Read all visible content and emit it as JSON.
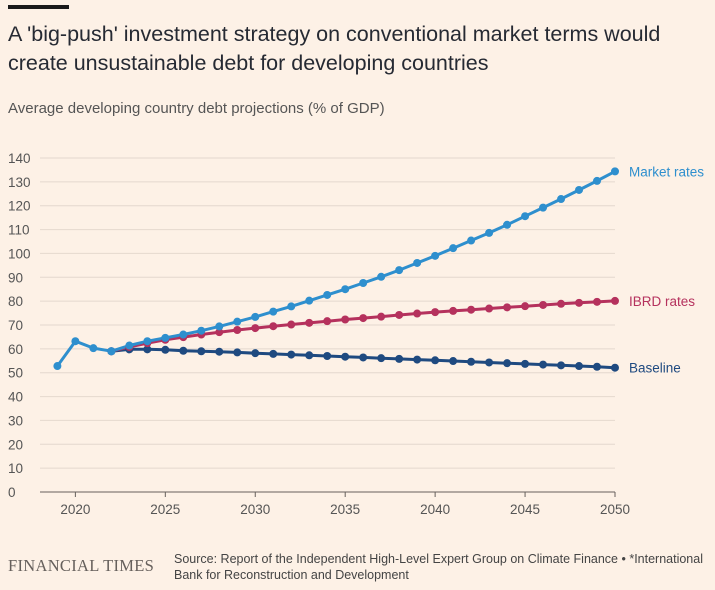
{
  "title": "A 'big-push' investment strategy on conventional market terms would create unsustainable debt for developing countries",
  "subtitle": "Average developing country debt projections (% of GDP)",
  "footer": {
    "logo": "FINANCIAL TIMES",
    "source": "Source: Report of the Independent High-Level Expert Group on Climate Finance • *International Bank for Reconstruction and Development"
  },
  "colors": {
    "background": "#fdf1e6",
    "grid": "#e4d8ce",
    "axis": "#66605c",
    "market": "#2e8fce",
    "ibrd": "#b5315d",
    "baseline": "#1f4a80"
  },
  "chart_data": {
    "type": "line",
    "title": "A 'big-push' investment strategy on conventional market terms would create unsustainable debt for developing countries",
    "subtitle": "Average developing country debt projections (% of GDP)",
    "xlabel": "",
    "ylabel": "",
    "xlim": [
      2018.2,
      2050
    ],
    "ylim": [
      0,
      140
    ],
    "xticks": [
      2020,
      2025,
      2030,
      2035,
      2040,
      2045,
      2050
    ],
    "yticks": [
      0,
      10,
      20,
      30,
      40,
      50,
      60,
      70,
      80,
      90,
      100,
      110,
      120,
      130,
      140
    ],
    "grid": true,
    "legend": "direct labels at line ends (right)",
    "history": {
      "x": [
        2019,
        2020,
        2021,
        2022
      ],
      "values": [
        52.8,
        63.2,
        60.3,
        59.0
      ]
    },
    "series": [
      {
        "name": "Market rates",
        "color": "#2e8fce",
        "x": [
          2022,
          2023,
          2024,
          2025,
          2026,
          2027,
          2028,
          2029,
          2030,
          2031,
          2032,
          2033,
          2034,
          2035,
          2036,
          2037,
          2038,
          2039,
          2040,
          2041,
          2042,
          2043,
          2044,
          2045,
          2046,
          2047,
          2048,
          2049,
          2050
        ],
        "values": [
          59.0,
          61.4,
          63.2,
          64.6,
          66.0,
          67.6,
          69.4,
          71.4,
          73.4,
          75.6,
          77.8,
          80.2,
          82.6,
          85.0,
          87.6,
          90.2,
          93.0,
          96.0,
          99.0,
          102.2,
          105.4,
          108.6,
          112.0,
          115.6,
          119.2,
          122.8,
          126.6,
          130.4,
          134.4
        ]
      },
      {
        "name": "IBRD rates",
        "color": "#b5315d",
        "x": [
          2022,
          2023,
          2024,
          2025,
          2026,
          2027,
          2028,
          2029,
          2030,
          2031,
          2032,
          2033,
          2034,
          2035,
          2036,
          2037,
          2038,
          2039,
          2040,
          2041,
          2042,
          2043,
          2044,
          2045,
          2046,
          2047,
          2048,
          2049,
          2050
        ],
        "values": [
          59.0,
          60.8,
          62.4,
          63.8,
          64.9,
          66.0,
          67.0,
          67.9,
          68.7,
          69.5,
          70.2,
          70.9,
          71.6,
          72.3,
          72.9,
          73.5,
          74.2,
          74.8,
          75.4,
          75.9,
          76.4,
          76.9,
          77.4,
          77.9,
          78.4,
          78.9,
          79.3,
          79.7,
          80.1
        ]
      },
      {
        "name": "Baseline",
        "color": "#1f4a80",
        "x": [
          2022,
          2023,
          2024,
          2025,
          2026,
          2027,
          2028,
          2029,
          2030,
          2031,
          2032,
          2033,
          2034,
          2035,
          2036,
          2037,
          2038,
          2039,
          2040,
          2041,
          2042,
          2043,
          2044,
          2045,
          2046,
          2047,
          2048,
          2049,
          2050
        ],
        "values": [
          59.0,
          59.8,
          59.8,
          59.6,
          59.2,
          59.0,
          58.8,
          58.5,
          58.2,
          57.9,
          57.6,
          57.3,
          57.0,
          56.7,
          56.4,
          56.1,
          55.8,
          55.5,
          55.2,
          54.9,
          54.6,
          54.3,
          54.0,
          53.7,
          53.4,
          53.1,
          52.8,
          52.5,
          52.1
        ]
      }
    ]
  }
}
